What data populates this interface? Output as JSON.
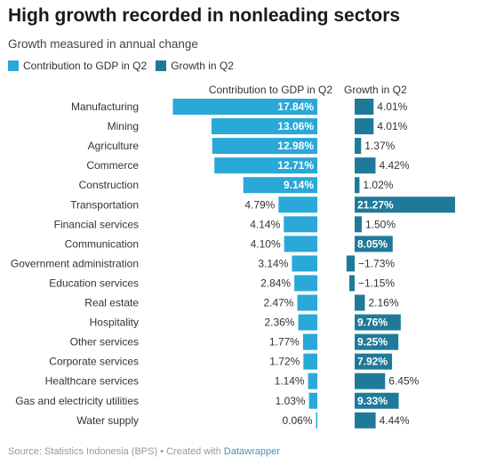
{
  "title": "High growth recorded in nonleading sectors",
  "subtitle": "Growth measured in annual change",
  "legend": [
    {
      "label": "Contribution to GDP in Q2",
      "color": "#2aa8d8"
    },
    {
      "label": "Growth in Q2",
      "color": "#1f7a99"
    }
  ],
  "footer": {
    "source": "Source: Statistics Indonesia (BPS) • Created with ",
    "tool": "Datawrapper"
  },
  "chart_data": {
    "type": "bar",
    "categories": [
      "Manufacturing",
      "Mining",
      "Agriculture",
      "Commerce",
      "Construction",
      "Transportation",
      "Financial services",
      "Communication",
      "Government administration",
      "Education services",
      "Real estate",
      "Hospitality",
      "Other services",
      "Corporate services",
      "Healthcare services",
      "Gas and electricity utilities",
      "Water supply"
    ],
    "series": [
      {
        "name": "Contribution to GDP in Q2",
        "color": "#2aa8d8",
        "values": [
          17.84,
          13.06,
          12.98,
          12.71,
          9.14,
          4.79,
          4.14,
          4.1,
          3.14,
          2.84,
          2.47,
          2.36,
          1.77,
          1.72,
          1.14,
          1.03,
          0.06
        ]
      },
      {
        "name": "Growth in Q2",
        "color": "#1f7a99",
        "values": [
          4.01,
          4.01,
          1.37,
          4.42,
          1.02,
          21.27,
          1.5,
          8.05,
          -1.73,
          -1.15,
          2.16,
          9.76,
          9.25,
          7.92,
          6.45,
          9.33,
          4.44
        ]
      }
    ],
    "column_headers": [
      "Contribution to GDP in Q2",
      "Growth in Q2"
    ],
    "unit": "%"
  }
}
